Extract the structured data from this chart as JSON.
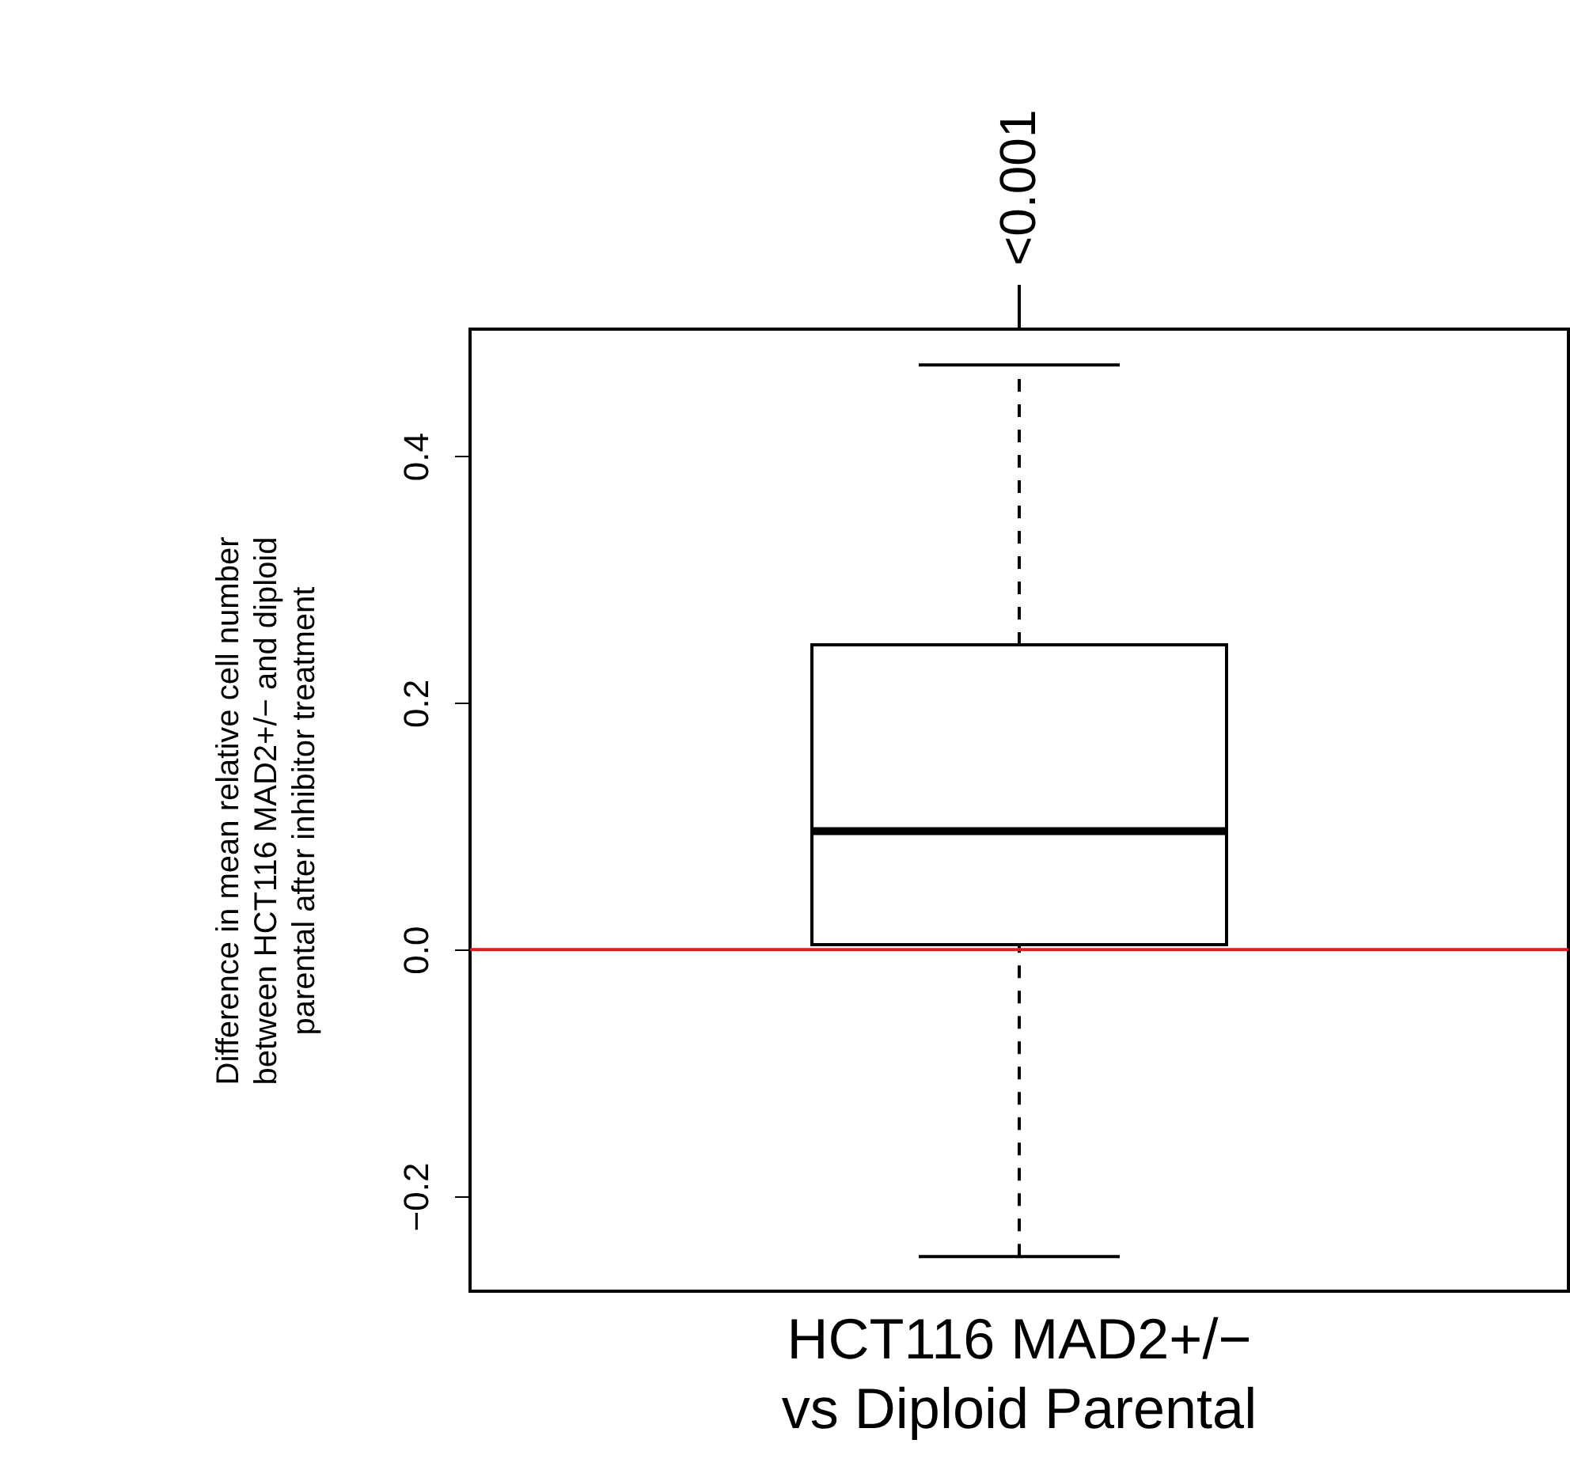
{
  "chart_data": {
    "type": "box",
    "categories": [
      "HCT116 MAD2+/−\nvs Diploid Parental"
    ],
    "boxes": [
      {
        "low": -0.249,
        "q1": 0.004,
        "median": 0.096,
        "q3": 0.247,
        "high": 0.474
      }
    ],
    "ylabel": "Difference in mean relative cell number\nbetween HCT116 MAD2+/− and diploid\nparental after inhibitor treatment",
    "ylim": [
      -0.277,
      0.503
    ],
    "yticks": [
      {
        "value": -0.2,
        "label": "−0.2"
      },
      {
        "value": 0.0,
        "label": "0.0"
      },
      {
        "value": 0.2,
        "label": "0.2"
      },
      {
        "value": 0.4,
        "label": "0.4"
      }
    ],
    "ref_lines": [
      {
        "axis": "y",
        "value": 0,
        "color": "#e41a1c"
      }
    ],
    "annotations": [
      "<0.001"
    ],
    "grid": false
  }
}
